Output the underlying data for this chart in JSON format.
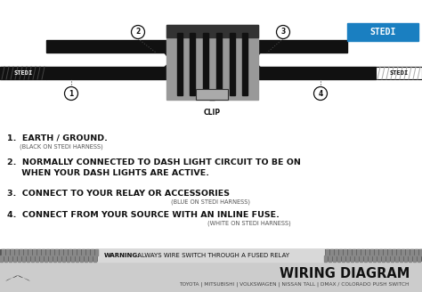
{
  "bg_color": "#ffffff",
  "wire_color": "#111111",
  "stedi_blue_bg": "#1a7fc1",
  "warning_text_bold": "WARNING:",
  "warning_text_normal": " ALWAYS WIRE SWITCH THROUGH A FUSED RELAY",
  "footer_text": "TOYOTA | MITSUBISHI | VOLKSWAGEN | NISSAN TALL | DMAX / COLORADO PUSH SWITCH",
  "wiring_title": "WIRING DIAGRAM",
  "item1_main": "1.  EARTH / GROUND.",
  "item1_sub": "(BLACK ON STEDI HARNESS)",
  "item2_main": "2.  NORMALLY CONNECTED TO DASH LIGHT CIRCUIT TO BE ON\n     WHEN YOUR DASH LIGHTS ARE ACTIVE.",
  "item3_main": "3.  CONNECT TO YOUR RELAY OR ACCESSORIES",
  "item3_sub": "(BLUE ON STEDI HARNESS)",
  "item4_main": "4.  CONNECT FROM YOUR SOURCE WITH AN INLINE FUSE.",
  "item4_sub": "(WHITE ON STEDI HARNESS)"
}
